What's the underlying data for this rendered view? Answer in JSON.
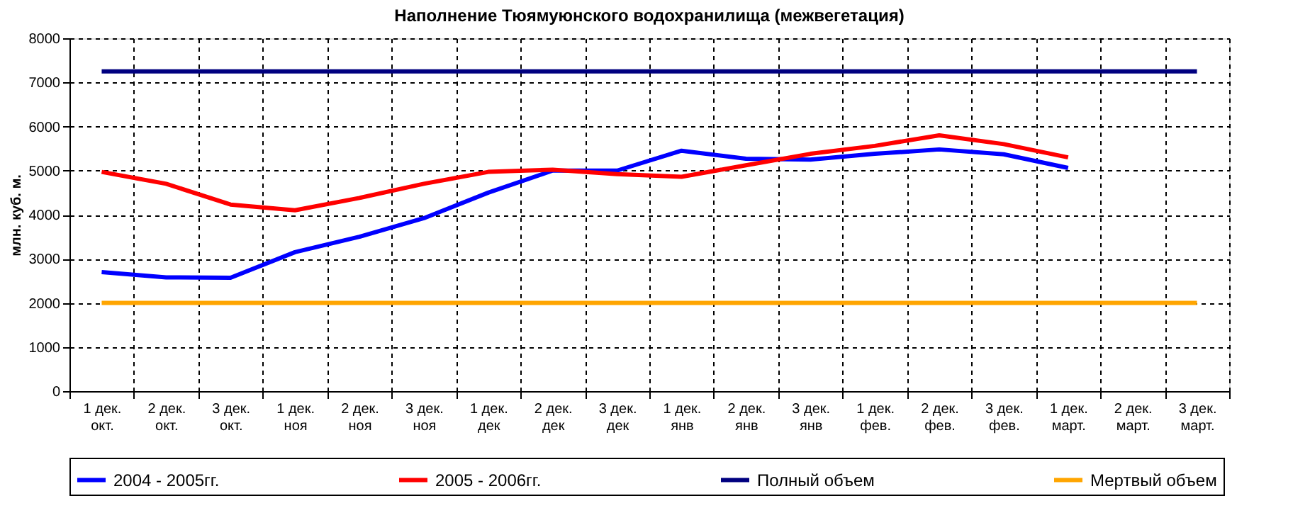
{
  "chart_data": {
    "type": "line",
    "title": "Наполнение Тюямуюнского водохранилища (межвегетация)",
    "ylabel": "млн. куб. м.",
    "categories": [
      "1 дек.\nокт.",
      "2 дек.\nокт.",
      "3 дек.\nокт.",
      "1 дек.\nноя",
      "2 дек.\nноя",
      "3 дек.\nноя",
      "1 дек.\nдек",
      "2 дек.\nдек",
      "3 дек.\nдек",
      "1 дек.\nянв",
      "2 дек.\nянв",
      "3 дек.\nянв",
      "1 дек.\nфев.",
      "2 дек.\nфев.",
      "3 дек.\nфев.",
      "1 дек.\nмарт.",
      "2 дек.\nмарт.",
      "3 дек.\nмарт."
    ],
    "series": [
      {
        "name": "2004 - 2005гг.",
        "color": "#0000ff",
        "values": [
          2700,
          2580,
          2570,
          3150,
          3500,
          3920,
          4500,
          5000,
          5000,
          5450,
          5270,
          5250,
          5380,
          5480,
          5370,
          5060,
          null,
          null
        ]
      },
      {
        "name": "2005 - 2006гг.",
        "color": "#ff0000",
        "values": [
          4970,
          4700,
          4230,
          4100,
          4380,
          4700,
          4970,
          5020,
          4920,
          4860,
          5120,
          5380,
          5560,
          5800,
          5600,
          5300,
          null,
          null
        ]
      },
      {
        "name": "Полный объем",
        "color": "#000080",
        "values": [
          7250,
          7250,
          7250,
          7250,
          7250,
          7250,
          7250,
          7250,
          7250,
          7250,
          7250,
          7250,
          7250,
          7250,
          7250,
          7250,
          7250,
          7250
        ]
      },
      {
        "name": "Мертвый объем",
        "color": "#ffa500",
        "values": [
          2000,
          2000,
          2000,
          2000,
          2000,
          2000,
          2000,
          2000,
          2000,
          2000,
          2000,
          2000,
          2000,
          2000,
          2000,
          2000,
          2000,
          2000
        ]
      }
    ],
    "ylim": [
      0,
      8000
    ],
    "yticks": [
      0,
      1000,
      2000,
      3000,
      4000,
      5000,
      6000,
      7000,
      8000
    ],
    "grid": true,
    "legend": "bottom",
    "marker": "none",
    "line_style": "solid"
  }
}
